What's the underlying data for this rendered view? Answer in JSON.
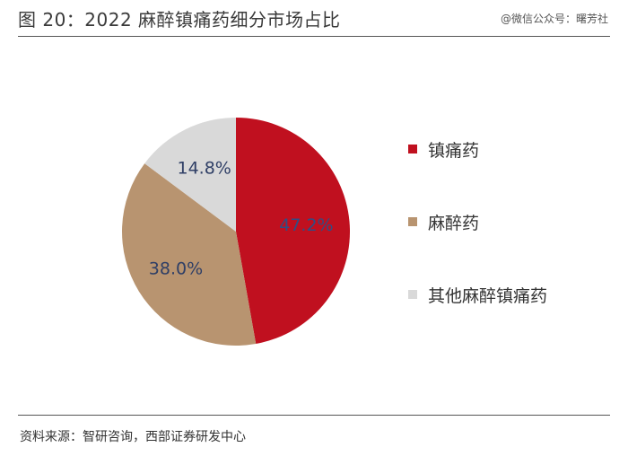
{
  "header": {
    "title": "图 20：2022 麻醉镇痛药细分市场占比",
    "watermark": "@微信公众号：曙芳社"
  },
  "footer": {
    "source": "资料来源：智研咨询，西部证券研发中心"
  },
  "chart_data": {
    "type": "pie",
    "title": "2022 麻醉镇痛药细分市场占比",
    "legend_position": "right",
    "slices": [
      {
        "name": "镇痛药",
        "value": 47.2,
        "label": "47.2%",
        "color": "#c0101f",
        "label_color": "#2f4e85"
      },
      {
        "name": "麻醉药",
        "value": 38.0,
        "label": "38.0%",
        "color": "#b89470",
        "label_color": "#2f3f66"
      },
      {
        "name": "其他麻醉镇痛药",
        "value": 14.8,
        "label": "14.8%",
        "color": "#d9d9d9",
        "label_color": "#2f3f66"
      }
    ]
  }
}
